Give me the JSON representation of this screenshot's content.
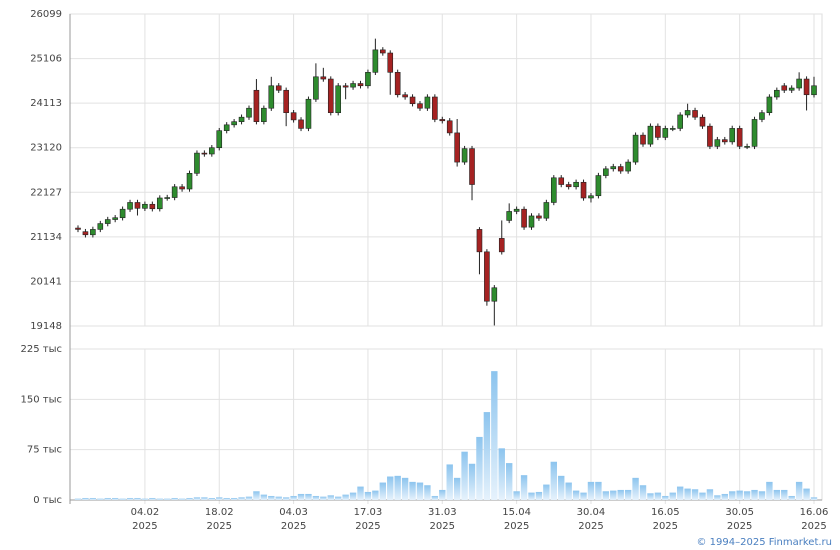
{
  "chart_data": {
    "type": "candlestick",
    "ylim": [
      19148,
      26099
    ],
    "yticks": [
      19148,
      20141,
      21134,
      22127,
      23120,
      24113,
      25106,
      26099
    ],
    "up_color": "#2e8b2e",
    "down_color": "#a52222",
    "volume_color": "#8cc4ee",
    "x_labels": [
      {
        "index": 9,
        "date": "04.02",
        "year": "2025"
      },
      {
        "index": 19,
        "date": "18.02",
        "year": "2025"
      },
      {
        "index": 29,
        "date": "04.03",
        "year": "2025"
      },
      {
        "index": 39,
        "date": "17.03",
        "year": "2025"
      },
      {
        "index": 49,
        "date": "31.03",
        "year": "2025"
      },
      {
        "index": 59,
        "date": "15.04",
        "year": "2025"
      },
      {
        "index": 69,
        "date": "30.04",
        "year": "2025"
      },
      {
        "index": 79,
        "date": "16.05",
        "year": "2025"
      },
      {
        "index": 89,
        "date": "30.05",
        "year": "2025"
      },
      {
        "index": 99,
        "date": "16.06",
        "year": "2025"
      }
    ],
    "open": [
      21330,
      21250,
      21180,
      21300,
      21430,
      21520,
      21560,
      21750,
      21900,
      21770,
      21860,
      21760,
      22000,
      22010,
      22250,
      22200,
      22550,
      23000,
      22980,
      23120,
      23500,
      23630,
      23700,
      23800,
      24400,
      23700,
      24000,
      24500,
      24400,
      23900,
      23740,
      23550,
      24200,
      24700,
      24650,
      23900,
      24500,
      24470,
      24550,
      24500,
      24800,
      25300,
      25230,
      24800,
      24300,
      24250,
      24100,
      24000,
      24250,
      23750,
      23720,
      23450,
      22800,
      23100,
      21300,
      20800,
      19700,
      21100,
      21500,
      21700,
      21750,
      21350,
      21600,
      21550,
      21900,
      22450,
      22300,
      22250,
      22350,
      22000,
      22050,
      22500,
      22650,
      22700,
      22600,
      22800,
      23400,
      23200,
      23600,
      23350,
      23550,
      23550,
      23850,
      23950,
      23800,
      23600,
      23150,
      23300,
      23250,
      23550,
      23150,
      23150,
      23750,
      23900,
      24250,
      24500,
      24400,
      24450,
      24650,
      24300
    ],
    "high": [
      21390,
      21310,
      21360,
      21490,
      21580,
      21620,
      21810,
      21960,
      21960,
      21920,
      21920,
      22060,
      22070,
      22310,
      22310,
      22610,
      23060,
      23060,
      23180,
      23560,
      23690,
      23760,
      23860,
      24060,
      24650,
      24060,
      24700,
      24560,
      24460,
      23960,
      23800,
      24260,
      25000,
      24900,
      24710,
      24560,
      24560,
      24610,
      24610,
      24860,
      25550,
      25360,
      25290,
      24860,
      24360,
      24310,
      24160,
      24310,
      24310,
      23810,
      23780,
      23760,
      23160,
      23160,
      21350,
      20860,
      20060,
      21500,
      21880,
      21810,
      21810,
      21660,
      21660,
      21960,
      22510,
      22510,
      22360,
      22410,
      22410,
      22110,
      22560,
      22710,
      22760,
      22760,
      22860,
      23460,
      23460,
      23660,
      23660,
      23610,
      23610,
      23910,
      24100,
      24010,
      23860,
      23660,
      23360,
      23360,
      23610,
      23610,
      23210,
      23810,
      23960,
      24310,
      24460,
      24560,
      24510,
      24800,
      24710,
      24700
    ],
    "low": [
      21240,
      21120,
      21120,
      21240,
      21370,
      21460,
      21500,
      21690,
      21610,
      21710,
      21700,
      21700,
      21940,
      21950,
      22140,
      22140,
      22490,
      22920,
      22920,
      23060,
      23440,
      23570,
      23640,
      23740,
      23640,
      23640,
      23940,
      24340,
      23600,
      23680,
      23490,
      23490,
      24140,
      24590,
      23840,
      23840,
      24200,
      24410,
      24440,
      24440,
      24740,
      25170,
      24300,
      24240,
      24190,
      24040,
      23940,
      23940,
      23690,
      23660,
      23390,
      22700,
      22740,
      21950,
      20300,
      19600,
      19160,
      20740,
      21440,
      21640,
      21290,
      21290,
      21490,
      21490,
      21840,
      22240,
      22190,
      22190,
      21940,
      21900,
      21990,
      22440,
      22590,
      22540,
      22540,
      22740,
      23140,
      23140,
      23290,
      23290,
      23490,
      23490,
      23790,
      23740,
      23540,
      23090,
      23090,
      23190,
      23190,
      23090,
      23090,
      23090,
      23690,
      23840,
      24190,
      24340,
      24340,
      24390,
      23950,
      24240
    ],
    "close": [
      21300,
      21180,
      21300,
      21430,
      21520,
      21560,
      21750,
      21900,
      21770,
      21860,
      21760,
      22000,
      22010,
      22250,
      22200,
      22550,
      23000,
      22980,
      23120,
      23500,
      23630,
      23700,
      23800,
      24000,
      23700,
      24000,
      24500,
      24400,
      23900,
      23740,
      23550,
      24200,
      24700,
      24650,
      23900,
      24500,
      24470,
      24550,
      24500,
      24800,
      25300,
      25230,
      24800,
      24300,
      24250,
      24100,
      24000,
      24250,
      23750,
      23720,
      23450,
      22800,
      23100,
      22300,
      20800,
      19700,
      20000,
      20800,
      21700,
      21750,
      21350,
      21600,
      21550,
      21900,
      22450,
      22300,
      22250,
      22350,
      22000,
      22050,
      22500,
      22650,
      22700,
      22600,
      22800,
      23400,
      23200,
      23600,
      23350,
      23550,
      23550,
      23850,
      23950,
      23800,
      23600,
      23150,
      23300,
      23250,
      23550,
      23150,
      23150,
      23750,
      23900,
      24250,
      24400,
      24400,
      24450,
      24650,
      24300,
      24500
    ],
    "volume_lim": [
      0,
      225000
    ],
    "volume_ticks": [
      {
        "value": 0,
        "label": "0 тыс"
      },
      {
        "value": 75000,
        "label": "75 тыс"
      },
      {
        "value": 150000,
        "label": "150 тыс"
      },
      {
        "value": 225000,
        "label": "225 тыс"
      }
    ],
    "volume": [
      2000,
      3000,
      3000,
      2000,
      3000,
      3000,
      2000,
      3000,
      3000,
      2000,
      3000,
      2000,
      2000,
      3000,
      2000,
      3000,
      4000,
      4000,
      3000,
      4000,
      3000,
      3000,
      4000,
      5000,
      13000,
      8000,
      6000,
      5000,
      4000,
      6000,
      9000,
      9000,
      6000,
      5000,
      7000,
      5000,
      8000,
      11000,
      20000,
      12000,
      14000,
      26000,
      35000,
      36000,
      33000,
      27000,
      26000,
      22000,
      6000,
      15000,
      53000,
      33000,
      72000,
      54000,
      94000,
      131000,
      192000,
      77000,
      55000,
      13000,
      37000,
      11000,
      12000,
      23000,
      57000,
      36000,
      26000,
      14000,
      11000,
      27000,
      27000,
      13000,
      14000,
      15000,
      15000,
      33000,
      22000,
      10000,
      11000,
      6000,
      11000,
      20000,
      17000,
      16000,
      11000,
      16000,
      7000,
      9000,
      13000,
      14000,
      13000,
      15000,
      13000,
      27000,
      15000,
      15000,
      6000,
      27000,
      17000,
      4000
    ]
  },
  "footer": "© 1994–2025 Finmarket.ru"
}
